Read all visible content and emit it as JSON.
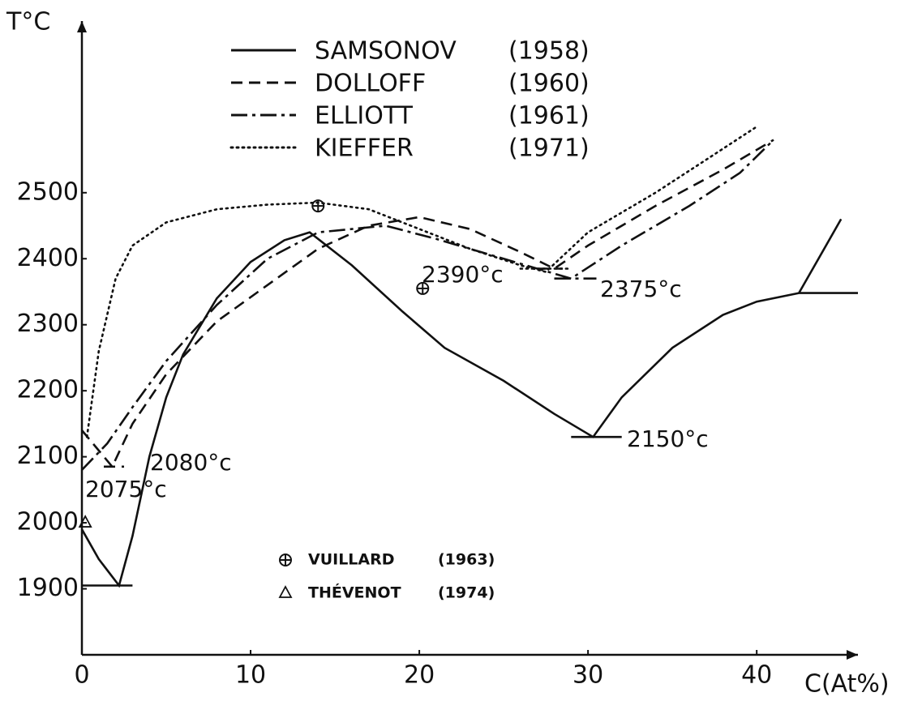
{
  "chart_data": {
    "type": "line",
    "y_label": "T°C",
    "x_label": "C(At%)",
    "xlim": [
      0,
      46
    ],
    "ylim": [
      1800,
      2760
    ],
    "xticks": [
      0,
      10,
      20,
      30,
      40
    ],
    "yticks": [
      1900,
      2000,
      2100,
      2200,
      2300,
      2400,
      2500
    ],
    "grid": false,
    "series": [
      {
        "name": "SAMSONOV",
        "year": "(1958)",
        "color": "#111111",
        "style": "solid",
        "x": [
          0,
          1,
          2.2,
          3,
          4,
          5,
          6,
          8,
          10,
          12,
          13.5,
          16,
          19,
          21.5,
          25,
          28,
          30.3,
          32,
          35,
          38,
          40,
          42.5,
          45,
          null,
          0,
          3,
          null,
          29,
          32,
          null,
          42.5,
          46
        ],
        "values": [
          1990,
          1945,
          1905,
          1980,
          2100,
          2190,
          2255,
          2340,
          2395,
          2428,
          2440,
          2390,
          2320,
          2265,
          2215,
          2165,
          2130,
          2190,
          2265,
          2315,
          2335,
          2348,
          2460,
          null,
          1905,
          1905,
          null,
          2130,
          2130,
          null,
          2348,
          2348
        ]
      },
      {
        "name": "DOLLOFF",
        "year": "(1960)",
        "color": "#111111",
        "style": "dashed",
        "x": [
          0,
          1.8,
          3,
          5,
          8,
          11,
          14,
          17,
          20,
          23,
          26,
          28,
          30,
          34,
          38,
          41,
          null,
          1.3,
          2.5,
          null,
          27,
          28.5
        ],
        "values": [
          2140,
          2085,
          2150,
          2225,
          2305,
          2360,
          2415,
          2450,
          2463,
          2445,
          2410,
          2385,
          2420,
          2480,
          2535,
          2580,
          null,
          2085,
          2085,
          null,
          2385,
          2385
        ]
      },
      {
        "name": "ELLIOTT",
        "year": "(1961)",
        "color": "#111111",
        "style": "dashdot",
        "x": [
          0,
          1.5,
          3,
          5,
          8,
          11,
          14,
          18,
          21,
          25,
          29,
          32,
          36,
          39,
          41,
          null,
          28,
          30.5
        ],
        "values": [
          2080,
          2120,
          2175,
          2245,
          2330,
          2400,
          2440,
          2450,
          2430,
          2400,
          2370,
          2420,
          2480,
          2530,
          2580,
          null,
          2370,
          2370
        ]
      },
      {
        "name": "KIEFFER",
        "year": "(1971)",
        "color": "#111111",
        "style": "dotted",
        "x": [
          0.3,
          1,
          2,
          3,
          5,
          8,
          11,
          14,
          17,
          20,
          23,
          26,
          27.5,
          30,
          34,
          37,
          40,
          null,
          26,
          29
        ],
        "values": [
          2130,
          2260,
          2370,
          2420,
          2455,
          2475,
          2482,
          2485,
          2475,
          2445,
          2415,
          2390,
          2380,
          2440,
          2500,
          2550,
          2600,
          null,
          2385,
          2385
        ]
      }
    ],
    "points": [
      {
        "name": "VUILLARD",
        "year": "(1963)",
        "marker": "circle-plus",
        "x": [
          14,
          20.2
        ],
        "values": [
          2480,
          2355
        ]
      },
      {
        "name": "THÉVENOT",
        "year": "(1974)",
        "marker": "triangle",
        "x": [
          0.2
        ],
        "values": [
          2000
        ]
      }
    ],
    "annotations": [
      "2080°c",
      "2075°c",
      "2390°c",
      "2375°c",
      "2150°c"
    ]
  }
}
